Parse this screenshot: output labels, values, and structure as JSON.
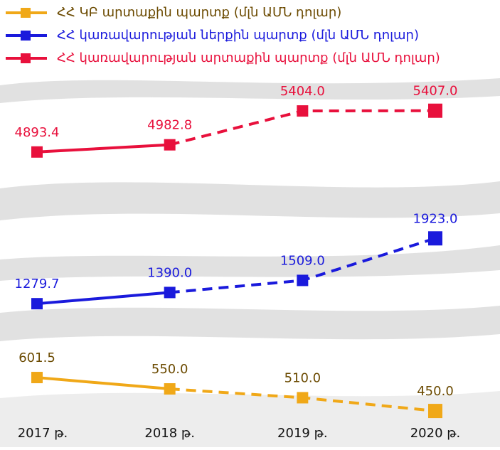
{
  "chart_data": {
    "type": "line",
    "categories": [
      "2017 թ.",
      "2018 թ.",
      "2019 թ.",
      "2020 թ."
    ],
    "dash_from_index": 1,
    "legend": "top-left",
    "series": [
      {
        "name": "ՀՀ ԿԲ արտաքին պարտք (մլն ԱՄՆ դոլար)",
        "color": "#f0a818",
        "label_color": "#6b4a00",
        "ylim": [
          315,
          1990
        ],
        "values": [
          601.5,
          550.0,
          510.0,
          450.0
        ],
        "value_labels": [
          "601.5",
          "550.0",
          "510.0",
          "450.0"
        ]
      },
      {
        "name": "ՀՀ կառավարության ներքին պարտք (մլն ԱՄՆ դոլար)",
        "color": "#1a1adc",
        "label_color": "#1a1adc",
        "ylim": [
          -70,
          3570
        ],
        "values": [
          1279.7,
          1390.0,
          1509.0,
          1923.0
        ],
        "value_labels": [
          "1279.7",
          "1390.0",
          "1509.0",
          "1923.0"
        ]
      },
      {
        "name": "ՀՀ կառավարության արտաքին պարտք (մլն ԱՄՆ դոլար)",
        "color": "#e8103c",
        "label_color": "#e8103c",
        "ylim": [
          1300,
          5900
        ],
        "values": [
          4893.4,
          4982.8,
          5404.0,
          5407.0
        ],
        "value_labels": [
          "4893.4",
          "4982.8",
          "5404.0",
          "5407.0"
        ]
      }
    ]
  }
}
